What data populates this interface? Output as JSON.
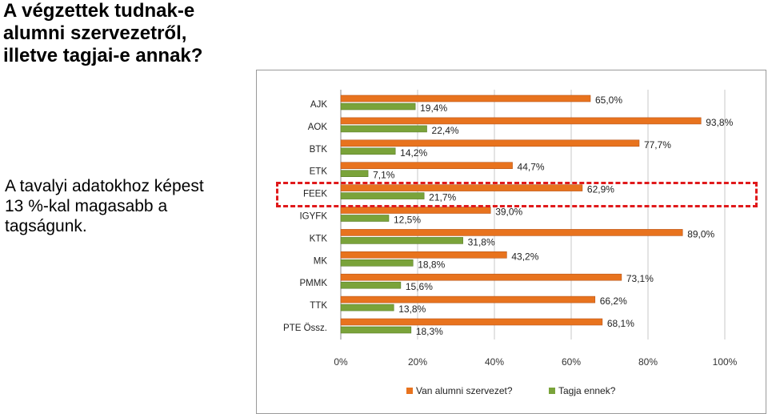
{
  "title": "A végzettek tudnak-e\nalumni szervezetről,\nilletve tagjai-e annak?",
  "note": "A tavalyi adatokhoz képest\n13 %-kal magasabb a\ntagságunk.",
  "colors": {
    "orange": "#e8731e",
    "green": "#7aa33a",
    "highlight": "#e0191b"
  },
  "chart_data": {
    "type": "bar",
    "orientation": "horizontal",
    "categories": [
      "AJK",
      "AOK",
      "BTK",
      "ETK",
      "FEEK",
      "IGYFK",
      "KTK",
      "MK",
      "PMMK",
      "TTK",
      "PTE Össz."
    ],
    "series": [
      {
        "name": "Van alumni szervezet?",
        "values": [
          65.0,
          93.8,
          77.7,
          44.7,
          62.9,
          39.0,
          89.0,
          43.2,
          73.1,
          66.2,
          68.1
        ],
        "labels": [
          "65,0%",
          "93,8%",
          "77,7%",
          "44,7%",
          "62,9%",
          "39,0%",
          "89,0%",
          "43,2%",
          "73,1%",
          "66,2%",
          "68,1%"
        ]
      },
      {
        "name": "Tagja ennek?",
        "values": [
          19.4,
          22.4,
          14.2,
          7.1,
          21.7,
          12.5,
          31.8,
          18.8,
          15.6,
          13.8,
          18.3
        ],
        "labels": [
          "19,4%",
          "22,4%",
          "14,2%",
          "7,1%",
          "21,7%",
          "12,5%",
          "31,8%",
          "18,8%",
          "15,6%",
          "13,8%",
          "18,3%"
        ]
      }
    ],
    "xticks": [
      "0%",
      "20%",
      "40%",
      "60%",
      "80%",
      "100%"
    ],
    "xlim": [
      0,
      100
    ],
    "grid": true,
    "legend": "bottom",
    "highlighted_category": "FEEK"
  }
}
